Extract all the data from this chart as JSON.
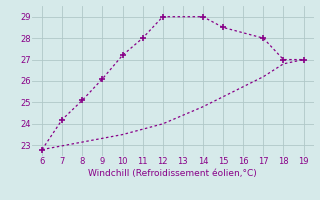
{
  "line1_x": [
    6,
    7,
    8,
    9,
    10,
    11,
    12,
    14,
    15,
    17,
    18,
    19
  ],
  "line1_y": [
    22.8,
    24.2,
    25.1,
    26.1,
    27.2,
    28.0,
    29.0,
    29.0,
    28.5,
    28.0,
    27.0,
    27.0
  ],
  "line2_x": [
    6,
    10,
    12,
    14,
    17,
    18,
    19
  ],
  "line2_y": [
    22.8,
    23.5,
    24.0,
    24.8,
    26.2,
    26.8,
    27.0
  ],
  "color": "#880088",
  "xlabel": "Windchill (Refroidissement éolien,°C)",
  "xlim": [
    5.5,
    19.5
  ],
  "ylim": [
    22.5,
    29.5
  ],
  "xticks": [
    6,
    7,
    8,
    9,
    10,
    11,
    12,
    13,
    14,
    15,
    16,
    17,
    18,
    19
  ],
  "yticks": [
    23,
    24,
    25,
    26,
    27,
    28,
    29
  ],
  "bg_color": "#d6eaea",
  "grid_color": "#b0c8c8"
}
